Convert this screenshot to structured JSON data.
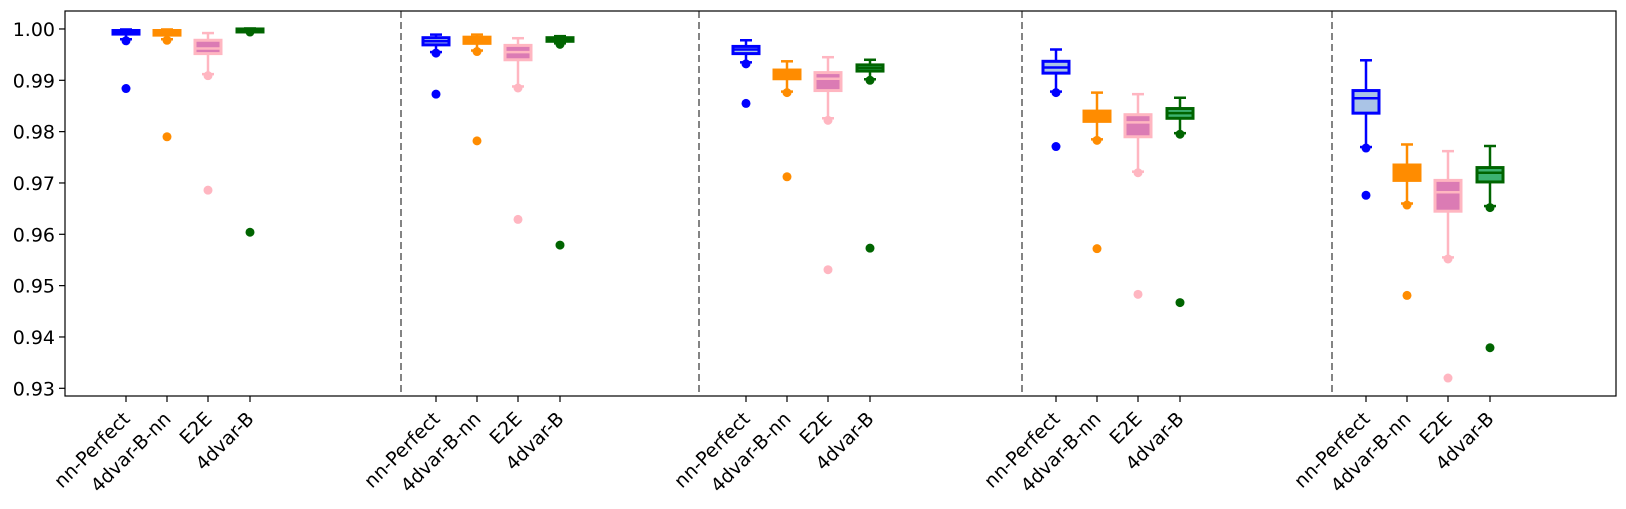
{
  "chart_data": {
    "type": "box",
    "title": "",
    "xlabel": "",
    "ylabel": "",
    "ylim": [
      0.9285,
      1.0035
    ],
    "yticks": [
      0.93,
      0.94,
      0.95,
      0.96,
      0.97,
      0.98,
      0.99,
      1.0
    ],
    "ytick_labels": [
      "0.93",
      "0.94",
      "0.95",
      "0.96",
      "0.97",
      "0.98",
      "0.99",
      "1.00"
    ],
    "grid": false,
    "legend": "none",
    "separators": "dashed vertical lines between groups",
    "methods": [
      {
        "name": "nn-Perfect",
        "color": "#0000ff",
        "fill": "#aac4e6"
      },
      {
        "name": "4dvar-B-nn",
        "color": "#ff8c00",
        "fill": "#ff8c00"
      },
      {
        "name": "E2E",
        "color": "#ffb6c1",
        "fill": "#db7bb4"
      },
      {
        "name": "4dvar-B",
        "color": "#006400",
        "fill": "#3cb371"
      }
    ],
    "groups": [
      {
        "boxes": [
          {
            "method": "nn-Perfect",
            "whislo": 0.998,
            "q1": 0.999,
            "med": 0.9993,
            "q3": 0.9997,
            "whishi": 0.9999,
            "fliers": [
              0.9977,
              0.9884
            ]
          },
          {
            "method": "4dvar-B-nn",
            "whislo": 0.998,
            "q1": 0.9988,
            "med": 0.9993,
            "q3": 0.9997,
            "whishi": 0.9999,
            "fliers": [
              0.9978,
              0.979
            ]
          },
          {
            "method": "E2E",
            "whislo": 0.9912,
            "q1": 0.9952,
            "med": 0.9962,
            "q3": 0.9978,
            "whishi": 0.9992,
            "fliers": [
              0.9909,
              0.9686
            ]
          },
          {
            "method": "4dvar-B",
            "whislo": 0.9995,
            "q1": 0.9997,
            "med": 0.9999,
            "q3": 1.0,
            "whishi": 1.0001,
            "fliers": [
              0.9994,
              0.9604
            ]
          }
        ]
      },
      {
        "boxes": [
          {
            "method": "nn-Perfect",
            "whislo": 0.9955,
            "q1": 0.9969,
            "med": 0.9976,
            "q3": 0.9983,
            "whishi": 0.9989,
            "fliers": [
              0.9953,
              0.9873
            ]
          },
          {
            "method": "4dvar-B-nn",
            "whislo": 0.9958,
            "q1": 0.9972,
            "med": 0.9978,
            "q3": 0.9984,
            "whishi": 0.9989,
            "fliers": [
              0.9956,
              0.9782
            ]
          },
          {
            "method": "E2E",
            "whislo": 0.9888,
            "q1": 0.994,
            "med": 0.9955,
            "q3": 0.9968,
            "whishi": 0.9982,
            "fliers": [
              0.9885,
              0.9629
            ]
          },
          {
            "method": "4dvar-B",
            "whislo": 0.9972,
            "q1": 0.9976,
            "med": 0.998,
            "q3": 0.9983,
            "whishi": 0.9986,
            "fliers": [
              0.997,
              0.9579
            ]
          }
        ]
      },
      {
        "boxes": [
          {
            "method": "nn-Perfect",
            "whislo": 0.9935,
            "q1": 0.9952,
            "med": 0.996,
            "q3": 0.9966,
            "whishi": 0.9978,
            "fliers": [
              0.9932,
              0.9855
            ]
          },
          {
            "method": "4dvar-B-nn",
            "whislo": 0.9878,
            "q1": 0.9903,
            "med": 0.9912,
            "q3": 0.992,
            "whishi": 0.9937,
            "fliers": [
              0.9876,
              0.9712
            ]
          },
          {
            "method": "E2E",
            "whislo": 0.9826,
            "q1": 0.988,
            "med": 0.9903,
            "q3": 0.9915,
            "whishi": 0.9945,
            "fliers": [
              0.9822,
              0.9531
            ]
          },
          {
            "method": "4dvar-B",
            "whislo": 0.9902,
            "q1": 0.9918,
            "med": 0.9924,
            "q3": 0.993,
            "whishi": 0.994,
            "fliers": [
              0.99,
              0.9573
            ]
          }
        ]
      },
      {
        "boxes": [
          {
            "method": "nn-Perfect",
            "whislo": 0.9878,
            "q1": 0.9914,
            "med": 0.9925,
            "q3": 0.9937,
            "whishi": 0.996,
            "fliers": [
              0.9876,
              0.9771
            ]
          },
          {
            "method": "4dvar-B-nn",
            "whislo": 0.9785,
            "q1": 0.982,
            "med": 0.983,
            "q3": 0.984,
            "whishi": 0.9876,
            "fliers": [
              0.9783,
              0.9572
            ]
          },
          {
            "method": "E2E",
            "whislo": 0.9722,
            "q1": 0.979,
            "med": 0.9818,
            "q3": 0.9833,
            "whishi": 0.9873,
            "fliers": [
              0.972,
              0.9483
            ]
          },
          {
            "method": "4dvar-B",
            "whislo": 0.9797,
            "q1": 0.9826,
            "med": 0.9836,
            "q3": 0.9845,
            "whishi": 0.9866,
            "fliers": [
              0.9795,
              0.9467
            ]
          }
        ]
      },
      {
        "boxes": [
          {
            "method": "nn-Perfect",
            "whislo": 0.977,
            "q1": 0.9836,
            "med": 0.9865,
            "q3": 0.988,
            "whishi": 0.9939,
            "fliers": [
              0.9768,
              0.9676
            ]
          },
          {
            "method": "4dvar-B-nn",
            "whislo": 0.966,
            "q1": 0.9705,
            "med": 0.972,
            "q3": 0.9735,
            "whishi": 0.9775,
            "fliers": [
              0.9657,
              0.9481
            ]
          },
          {
            "method": "E2E",
            "whislo": 0.9555,
            "q1": 0.9645,
            "med": 0.9682,
            "q3": 0.9705,
            "whishi": 0.9762,
            "fliers": [
              0.9552,
              0.932
            ]
          },
          {
            "method": "4dvar-B",
            "whislo": 0.9655,
            "q1": 0.9702,
            "med": 0.972,
            "q3": 0.973,
            "whishi": 0.9772,
            "fliers": [
              0.9652,
              0.9379
            ]
          }
        ]
      }
    ]
  }
}
